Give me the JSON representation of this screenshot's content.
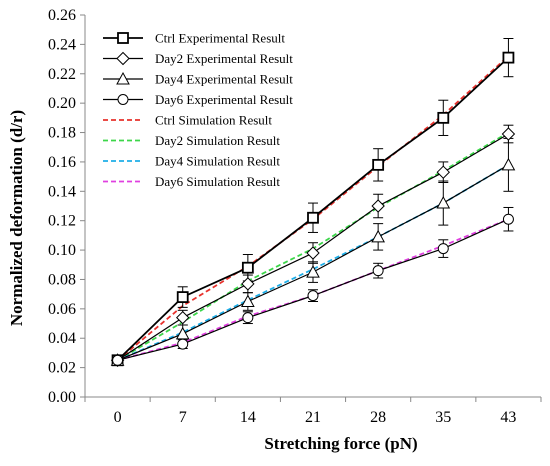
{
  "chart_data": {
    "type": "line",
    "title": "",
    "xlabel": "Stretching force (pN)",
    "ylabel": "Normalized deformation (d/r)",
    "categories": [
      "0",
      "7",
      "14",
      "21",
      "28",
      "35",
      "43"
    ],
    "ylim": [
      0,
      0.26
    ],
    "ytick_step": 0.02,
    "y_tick_labels": [
      "0.00",
      "0.02",
      "0.04",
      "0.06",
      "0.08",
      "0.10",
      "0.12",
      "0.14",
      "0.16",
      "0.18",
      "0.20",
      "0.22",
      "0.24",
      "0.26"
    ],
    "grid": false,
    "legend_position": "top-left",
    "series": [
      {
        "name": "Ctrl Experimental Result",
        "kind": "experimental",
        "marker": "square",
        "color": "#000000",
        "values": [
          0.025,
          0.068,
          0.088,
          0.122,
          0.158,
          0.19,
          0.231
        ],
        "errors": [
          0.003,
          0.007,
          0.009,
          0.01,
          0.011,
          0.012,
          0.013
        ]
      },
      {
        "name": "Day2 Experimental Result",
        "kind": "experimental",
        "marker": "diamond",
        "color": "#000000",
        "values": [
          0.025,
          0.054,
          0.077,
          0.098,
          0.13,
          0.153,
          0.179
        ],
        "errors": [
          0.003,
          0.005,
          0.006,
          0.007,
          0.008,
          0.007,
          0.006
        ]
      },
      {
        "name": "Day4 Experimental Result",
        "kind": "experimental",
        "marker": "triangle",
        "color": "#000000",
        "values": [
          0.025,
          0.043,
          0.065,
          0.085,
          0.109,
          0.132,
          0.158
        ],
        "errors": [
          0.003,
          0.006,
          0.006,
          0.007,
          0.009,
          0.015,
          0.018
        ]
      },
      {
        "name": "Day6 Experimental Result",
        "kind": "experimental",
        "marker": "circle",
        "color": "#000000",
        "values": [
          0.025,
          0.036,
          0.054,
          0.069,
          0.086,
          0.101,
          0.121
        ],
        "errors": [
          0.002,
          0.003,
          0.004,
          0.004,
          0.005,
          0.006,
          0.008
        ]
      },
      {
        "name": "Ctrl Simulation Result",
        "kind": "simulation",
        "color": "#e8322d",
        "values": [
          0.025,
          0.062,
          0.089,
          0.121,
          0.157,
          0.192,
          0.232
        ]
      },
      {
        "name": "Day2 Simulation Result",
        "kind": "simulation",
        "color": "#3cd64a",
        "values": [
          0.025,
          0.051,
          0.079,
          0.101,
          0.129,
          0.154,
          0.18
        ]
      },
      {
        "name": "Day4 Simulation Result",
        "kind": "simulation",
        "color": "#1eaee8",
        "values": [
          0.025,
          0.044,
          0.066,
          0.087,
          0.109,
          0.132,
          0.158
        ]
      },
      {
        "name": "Day6 Simulation Result",
        "kind": "simulation",
        "color": "#e040e0",
        "values": [
          0.025,
          0.037,
          0.055,
          0.069,
          0.086,
          0.103,
          0.121
        ]
      }
    ]
  }
}
